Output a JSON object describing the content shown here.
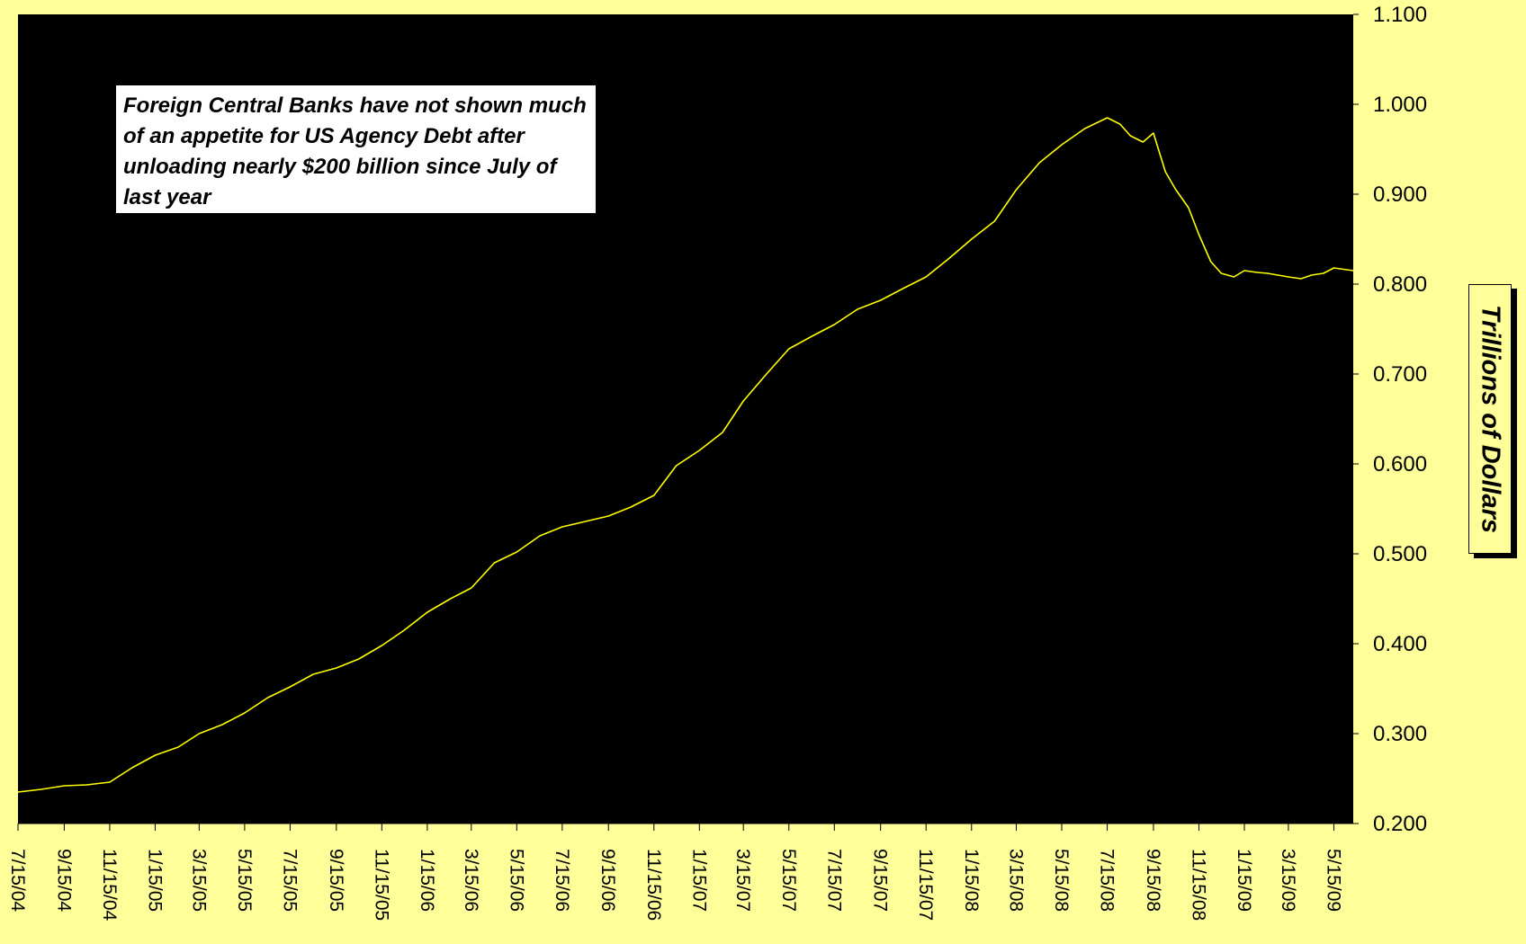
{
  "chart_data": {
    "type": "line",
    "annotation": "Foreign Central Banks have not shown much of an appetite for US Agency Debt after unloading nearly $200 billion since July of last year",
    "ylabel": "Trillions of Dollars",
    "ylim": [
      0.2,
      1.1
    ],
    "yticks": [
      "0.200",
      "0.300",
      "0.400",
      "0.500",
      "0.600",
      "0.700",
      "0.800",
      "0.900",
      "1.000",
      "1.100"
    ],
    "xlim": [
      "2004-07-15",
      "2009-06-10"
    ],
    "xtick_dates": [
      "2004-07-15",
      "2004-09-15",
      "2004-11-15",
      "2005-01-15",
      "2005-03-15",
      "2005-05-15",
      "2005-07-15",
      "2005-09-15",
      "2005-11-15",
      "2006-01-15",
      "2006-03-15",
      "2006-05-15",
      "2006-07-15",
      "2006-09-15",
      "2006-11-15",
      "2007-01-15",
      "2007-03-15",
      "2007-05-15",
      "2007-07-15",
      "2007-09-15",
      "2007-11-15",
      "2008-01-15",
      "2008-03-15",
      "2008-05-15",
      "2008-07-15",
      "2008-09-15",
      "2008-11-15",
      "2009-01-15",
      "2009-03-15",
      "2009-05-15"
    ],
    "xtick_labels": [
      "7/15/04",
      "9/15/04",
      "11/15/04",
      "1/15/05",
      "3/15/05",
      "5/15/05",
      "7/15/05",
      "9/15/05",
      "11/15/05",
      "1/15/06",
      "3/15/06",
      "5/15/06",
      "7/15/06",
      "9/15/06",
      "11/15/06",
      "1/15/07",
      "3/15/07",
      "5/15/07",
      "7/15/07",
      "9/15/07",
      "11/15/07",
      "1/15/08",
      "3/15/08",
      "5/15/08",
      "7/15/08",
      "9/15/08",
      "11/15/08",
      "1/15/09",
      "3/15/09",
      "5/15/09"
    ],
    "grid": false,
    "legend": "none",
    "colors": {
      "page": "#ffff99",
      "plot_area": "#000000",
      "line": "#ffff00"
    },
    "series": [
      {
        "x": [
          "2004-07-15",
          "2004-08-15",
          "2004-09-15",
          "2004-10-15",
          "2004-11-15",
          "2004-12-15",
          "2005-01-15",
          "2005-02-15",
          "2005-03-15",
          "2005-04-15",
          "2005-05-15",
          "2005-06-15",
          "2005-07-15",
          "2005-08-15",
          "2005-09-15",
          "2005-10-15",
          "2005-11-15",
          "2005-12-15",
          "2006-01-15",
          "2006-02-15",
          "2006-03-15",
          "2006-04-15",
          "2006-05-15",
          "2006-06-15",
          "2006-07-15",
          "2006-08-15",
          "2006-09-15",
          "2006-10-15",
          "2006-11-15",
          "2006-12-15",
          "2007-01-15",
          "2007-02-15",
          "2007-03-15",
          "2007-04-15",
          "2007-05-15",
          "2007-06-15",
          "2007-07-15",
          "2007-08-15",
          "2007-09-15",
          "2007-10-15",
          "2007-11-15",
          "2007-12-15",
          "2008-01-15",
          "2008-02-15",
          "2008-03-15",
          "2008-04-15",
          "2008-05-15",
          "2008-06-15",
          "2008-07-15",
          "2008-08-01",
          "2008-08-15",
          "2008-09-01",
          "2008-09-15",
          "2008-10-01",
          "2008-10-15",
          "2008-11-01",
          "2008-11-15",
          "2008-12-01",
          "2008-12-15",
          "2009-01-01",
          "2009-01-15",
          "2009-02-01",
          "2009-02-15",
          "2009-03-01",
          "2009-03-15",
          "2009-04-01",
          "2009-04-15",
          "2009-05-01",
          "2009-05-15",
          "2009-06-01",
          "2009-06-10"
        ],
        "values": [
          0.235,
          0.238,
          0.242,
          0.243,
          0.246,
          0.262,
          0.276,
          0.285,
          0.3,
          0.31,
          0.323,
          0.34,
          0.352,
          0.366,
          0.373,
          0.383,
          0.398,
          0.415,
          0.435,
          0.45,
          0.462,
          0.49,
          0.502,
          0.52,
          0.53,
          0.536,
          0.542,
          0.552,
          0.565,
          0.598,
          0.615,
          0.635,
          0.67,
          0.7,
          0.728,
          0.742,
          0.755,
          0.772,
          0.782,
          0.795,
          0.808,
          0.828,
          0.85,
          0.87,
          0.905,
          0.935,
          0.955,
          0.973,
          0.985,
          0.978,
          0.965,
          0.958,
          0.968,
          0.925,
          0.905,
          0.885,
          0.855,
          0.825,
          0.812,
          0.808,
          0.815,
          0.813,
          0.812,
          0.81,
          0.808,
          0.806,
          0.81,
          0.812,
          0.818,
          0.816,
          0.815
        ]
      }
    ]
  }
}
